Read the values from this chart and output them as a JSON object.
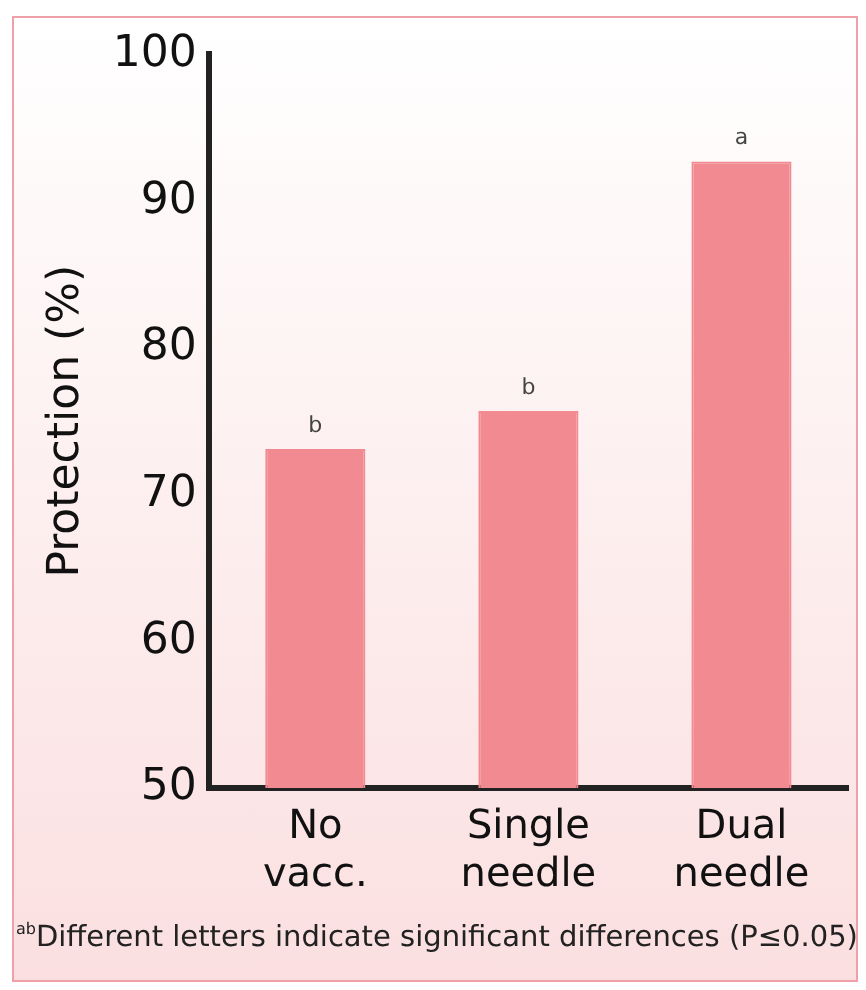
{
  "chart_data": {
    "type": "bar",
    "ylabel": "Protection (%)",
    "categories": [
      "No\nvacc.",
      "Single\nneedle",
      "Dual\nneedle"
    ],
    "values": [
      73.1,
      75.7,
      92.7
    ],
    "color": "#f28a92",
    "ylim": [
      50,
      100
    ],
    "yticks": [
      50,
      60,
      70,
      80,
      90,
      100
    ],
    "grid": false,
    "annotations": [
      {
        "text": "b",
        "x": "No\nvacc.",
        "y": 73.1
      },
      {
        "text": "b",
        "x": "Single\nneedle",
        "y": 75.7
      },
      {
        "text": "a",
        "x": "Dual\nneedle",
        "y": 92.7
      },
      "$^{ab}$Different letters indicate significant differences (P≤0.05)"
    ]
  }
}
